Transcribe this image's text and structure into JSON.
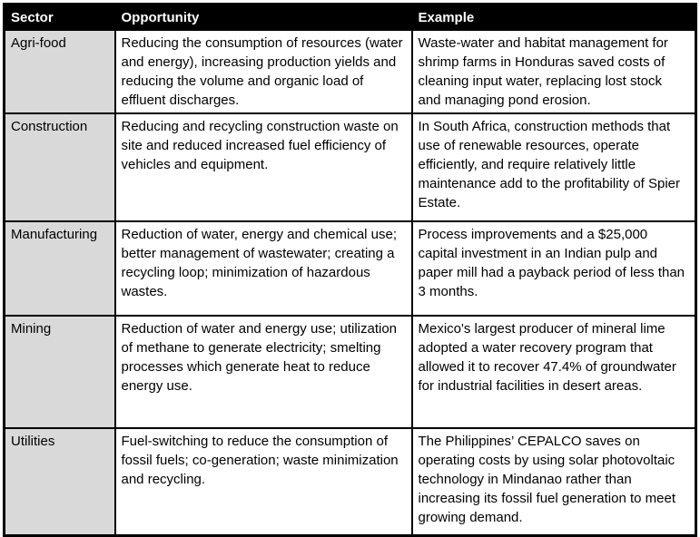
{
  "colors": {
    "header_bg": "#000000",
    "header_text": "#ffffff",
    "sector_column_bg": "#d9d9d9",
    "border": "#000000",
    "body_text": "#000000"
  },
  "table": {
    "columns": [
      "Sector",
      "Opportunity",
      "Example"
    ],
    "rows": [
      {
        "sector": "Agri-food",
        "opportunity": "Reducing the consumption of resources (water and energy), increasing production yields and reducing the volume and organic load of effluent discharges.",
        "example": "Waste-water and habitat management for shrimp farms in Honduras saved costs of cleaning input water, replacing lost stock and managing pond erosion."
      },
      {
        "sector": "Construction",
        "opportunity": "Reducing and recycling construction waste on site and reduced increased fuel efficiency of vehicles and equipment.",
        "example": "In South Africa, construction methods that use of renewable resources, operate efficiently, and require relatively little maintenance add to the profitability of Spier Estate."
      },
      {
        "sector": "Manufacturing",
        "opportunity": "Reduction of water, energy and chemical use; better management of wastewater; creating a recycling loop; minimization of hazardous wastes.",
        "example": "Process improvements and a $25,000 capital investment in an Indian pulp and paper mill had a payback period of less than 3 months."
      },
      {
        "sector": "Mining",
        "opportunity": "Reduction of water and energy use; utilization of methane to generate electricity; smelting processes which generate heat to reduce energy use.",
        "example": "Mexico's largest producer of mineral lime adopted a water recovery program that allowed it to recover 47.4% of groundwater for industrial facilities in desert areas."
      },
      {
        "sector": "Utilities",
        "opportunity": "Fuel-switching to reduce the consumption of fossil fuels; co-generation; waste minimization and recycling.",
        "example": "The Philippines’ CEPALCO saves on operating costs by using solar photovoltaic technology in Mindanao rather than increasing its fossil fuel generation to meet growing demand."
      }
    ]
  }
}
